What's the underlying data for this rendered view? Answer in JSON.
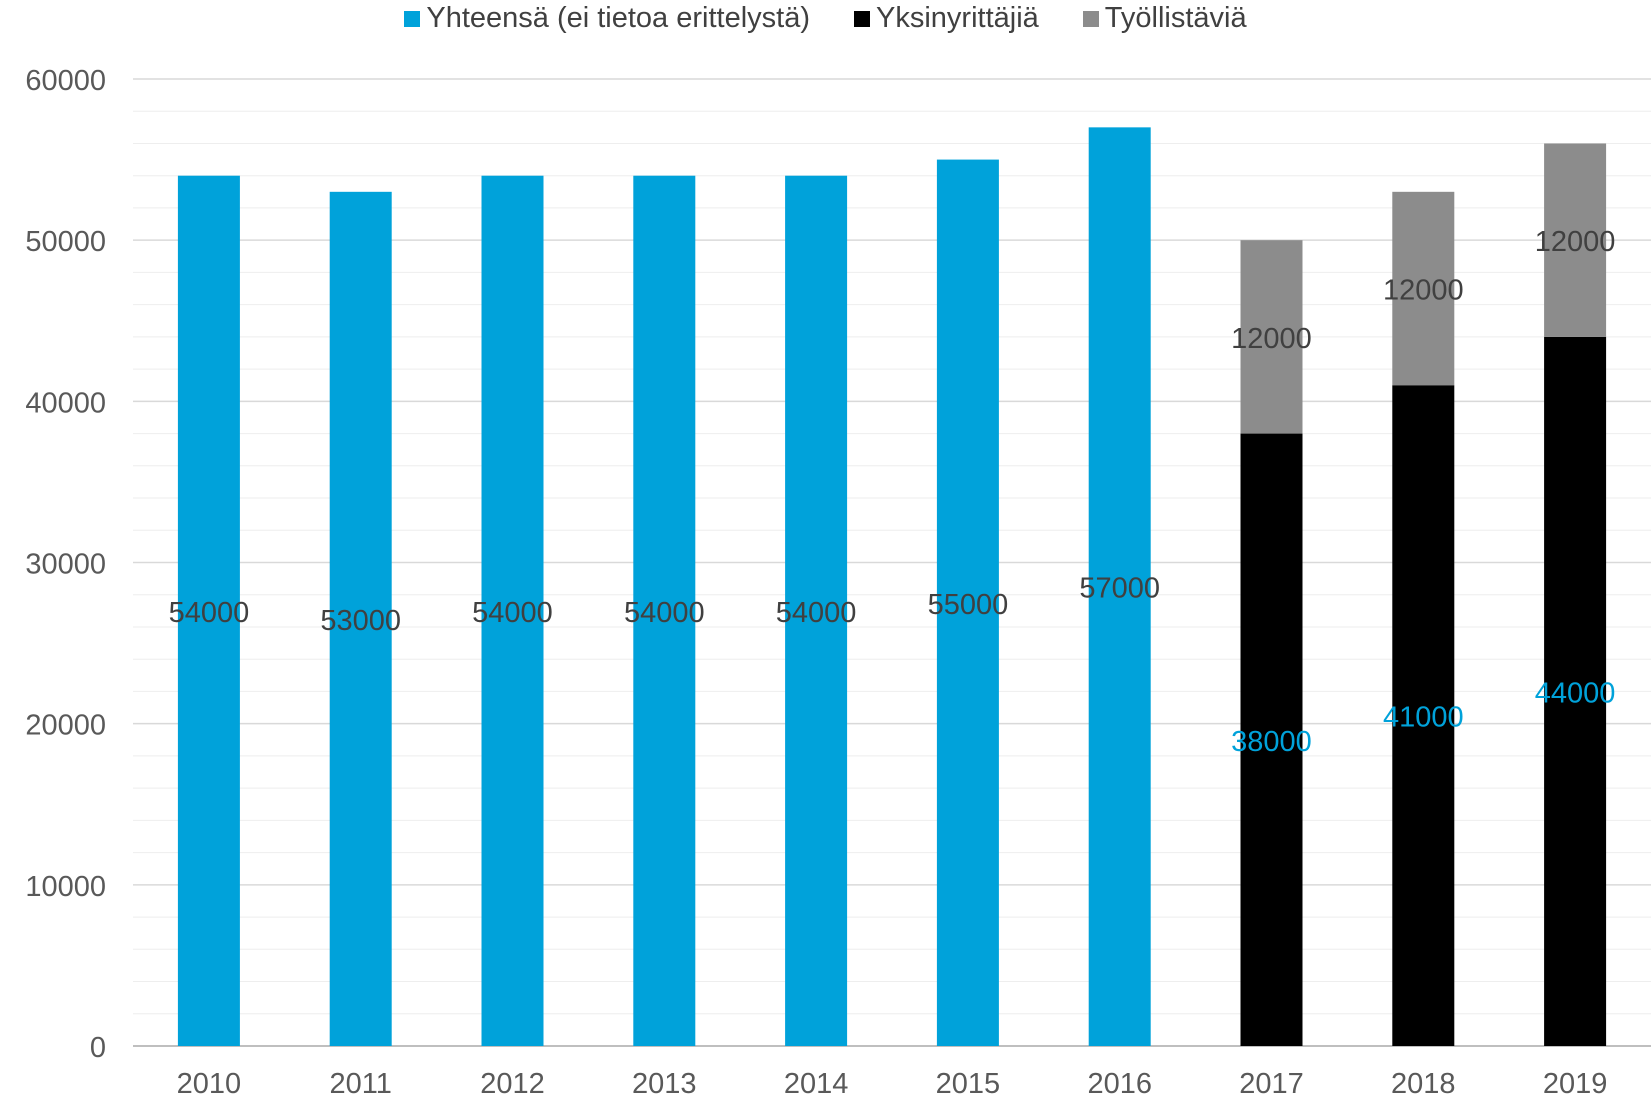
{
  "chart_data": {
    "type": "bar",
    "stacked": true,
    "categories": [
      "2010",
      "2011",
      "2012",
      "2013",
      "2014",
      "2015",
      "2016",
      "2017",
      "2018",
      "2019"
    ],
    "series": [
      {
        "name": "Yhteensä (ei tietoa erittelystä)",
        "color": "#00A2DA",
        "values": [
          54000,
          53000,
          54000,
          54000,
          54000,
          55000,
          57000,
          null,
          null,
          null
        ],
        "label_color": "#404040"
      },
      {
        "name": "Yksinyrittäjiä",
        "color": "#000000",
        "values": [
          null,
          null,
          null,
          null,
          null,
          null,
          null,
          38000,
          41000,
          44000
        ],
        "label_color": "#00A2DA"
      },
      {
        "name": "Työllistäviä",
        "color": "#8C8C8C",
        "values": [
          null,
          null,
          null,
          null,
          null,
          null,
          null,
          12000,
          12000,
          12000
        ],
        "label_color": "#404040"
      }
    ],
    "data_labels": [
      [
        "54000",
        "53000",
        "54000",
        "54000",
        "54000",
        "55000",
        "57000",
        null,
        null,
        null
      ],
      [
        null,
        null,
        null,
        null,
        null,
        null,
        null,
        "38000",
        "41000",
        "44000"
      ],
      [
        null,
        null,
        null,
        null,
        null,
        null,
        null,
        "12000",
        "12000",
        "12000"
      ]
    ],
    "yticks": [
      "0",
      "10000",
      "20000",
      "30000",
      "40000",
      "50000",
      "60000"
    ],
    "ylim": [
      0,
      60000
    ],
    "ymajor": 10000,
    "yminor": 2000,
    "grid": true,
    "legend_position": "top",
    "title": "",
    "xlabel": "",
    "ylabel": ""
  }
}
